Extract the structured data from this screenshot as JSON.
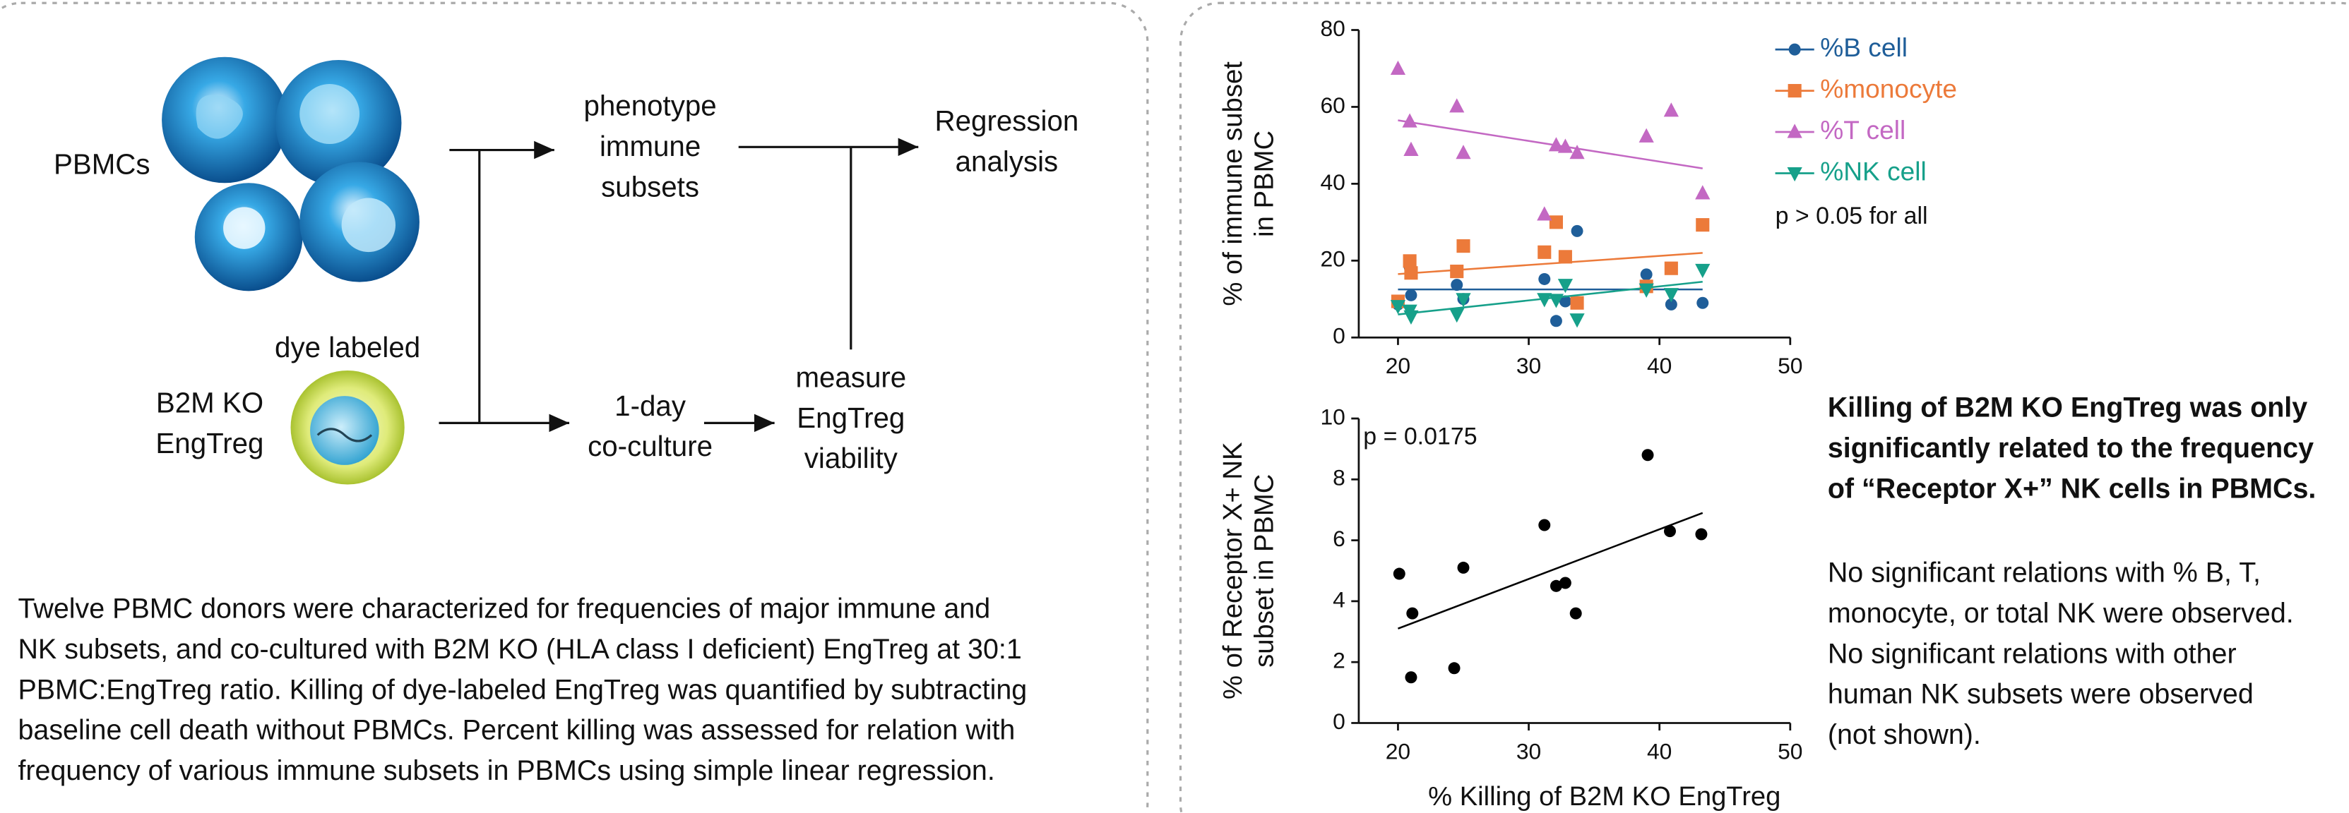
{
  "diagram": {
    "pbmc_label": "PBMCs",
    "phenotype": [
      "phenotype",
      "immune",
      "subsets"
    ],
    "regression": [
      "Regression",
      "analysis"
    ],
    "dye_label": "dye labeled",
    "engtreg_label": [
      "B2M KO",
      "EngTreg"
    ],
    "coculture": [
      "1-day",
      "co-culture"
    ],
    "measure": [
      "measure",
      "EngTreg",
      "viability"
    ]
  },
  "caption": [
    "Twelve PBMC donors were characterized for frequencies of major immune and",
    "NK subsets, and co-cultured with B2M KO (HLA class I deficient) EngTreg at 30:1",
    "PBMC:EngTreg ratio. Killing of dye-labeled EngTreg was quantified by subtracting",
    "baseline cell death without PBMCs. Percent killing was assessed for relation with",
    "frequency of various immune subsets in PBMCs using simple linear regression."
  ],
  "conclusion": {
    "bold": [
      "Killing of B2M KO EngTreg was only",
      "significantly related to the frequency",
      "of “Receptor X+” NK cells in PBMCs."
    ],
    "text": [
      "No significant relations with % B, T,",
      "monocyte, or total NK were observed.",
      "No significant relations with other",
      "human NK subsets were observed",
      "(not shown)."
    ]
  },
  "chart_data": [
    {
      "type": "scatter",
      "ylabel": [
        "% of immune subset",
        "in PBMC"
      ],
      "annotation": "p > 0.05 for all",
      "legend": "outside right",
      "x": [
        20.0,
        20.9,
        21.0,
        24.5,
        25.0,
        31.2,
        32.1,
        32.8,
        33.7,
        39.0,
        40.9,
        43.3
      ],
      "xlim": [
        17,
        50
      ],
      "xticks": [
        20,
        30,
        40,
        50
      ],
      "ylim": [
        0,
        80
      ],
      "yticks": [
        0,
        20,
        40,
        60,
        80
      ],
      "series": [
        {
          "name": "%B cell",
          "color": "#1f5e99",
          "marker": "circle",
          "values": [
            8.6,
            18.3,
            11,
            13.7,
            10,
            15.2,
            4.3,
            9.4,
            27.7,
            16.4,
            8.6,
            9
          ],
          "fit": {
            "x": [
              20,
              43.3
            ],
            "values": [
              12.5,
              12.5
            ]
          }
        },
        {
          "name": "%monocyte",
          "color": "#ec7a3a",
          "marker": "square",
          "values": [
            9.4,
            19.9,
            16.8,
            17.2,
            23.8,
            22.2,
            30,
            21,
            9,
            13.3,
            18,
            29.3
          ],
          "fit": {
            "x": [
              20,
              43.3
            ],
            "values": [
              16.5,
              22
            ]
          }
        },
        {
          "name": "%T cell",
          "color": "#c368c3",
          "marker": "triangle",
          "values": [
            69.9,
            56.2,
            48.8,
            60.1,
            48,
            32,
            50,
            49.6,
            48,
            52.3,
            59,
            37.5
          ],
          "fit": {
            "x": [
              20,
              43.3
            ],
            "values": [
              56.5,
              44
            ]
          }
        },
        {
          "name": "%NK cell",
          "color": "#16a08a",
          "marker": "triangle-down",
          "values": [
            8.2,
            7,
            5.5,
            6,
            10,
            10,
            9.8,
            13.7,
            4.7,
            12.5,
            11.3,
            17.6
          ],
          "fit": {
            "x": [
              20,
              43.3
            ],
            "values": [
              6,
              14.5
            ]
          }
        }
      ]
    },
    {
      "type": "scatter",
      "ylabel": [
        "% of Receptor X+ NK",
        "subset in PBMC"
      ],
      "xlabel": "% Killing of B2M KO EngTreg",
      "annotation": "p = 0.0175",
      "x": [
        20.1,
        21.1,
        21.0,
        24.3,
        25.0,
        31.2,
        32.1,
        32.8,
        33.6,
        39.1,
        40.8,
        43.2
      ],
      "values": [
        4.9,
        3.6,
        1.5,
        1.8,
        5.1,
        6.5,
        4.5,
        4.6,
        3.6,
        8.8,
        6.3,
        6.2
      ],
      "color": "#000000",
      "marker": "circle",
      "fit": {
        "x": [
          20,
          43.3
        ],
        "values": [
          3.1,
          6.9
        ]
      },
      "xlim": [
        17,
        50
      ],
      "xticks": [
        20,
        30,
        40,
        50
      ],
      "ylim": [
        0,
        10
      ],
      "yticks": [
        0,
        2,
        4,
        6,
        8,
        10
      ]
    }
  ]
}
